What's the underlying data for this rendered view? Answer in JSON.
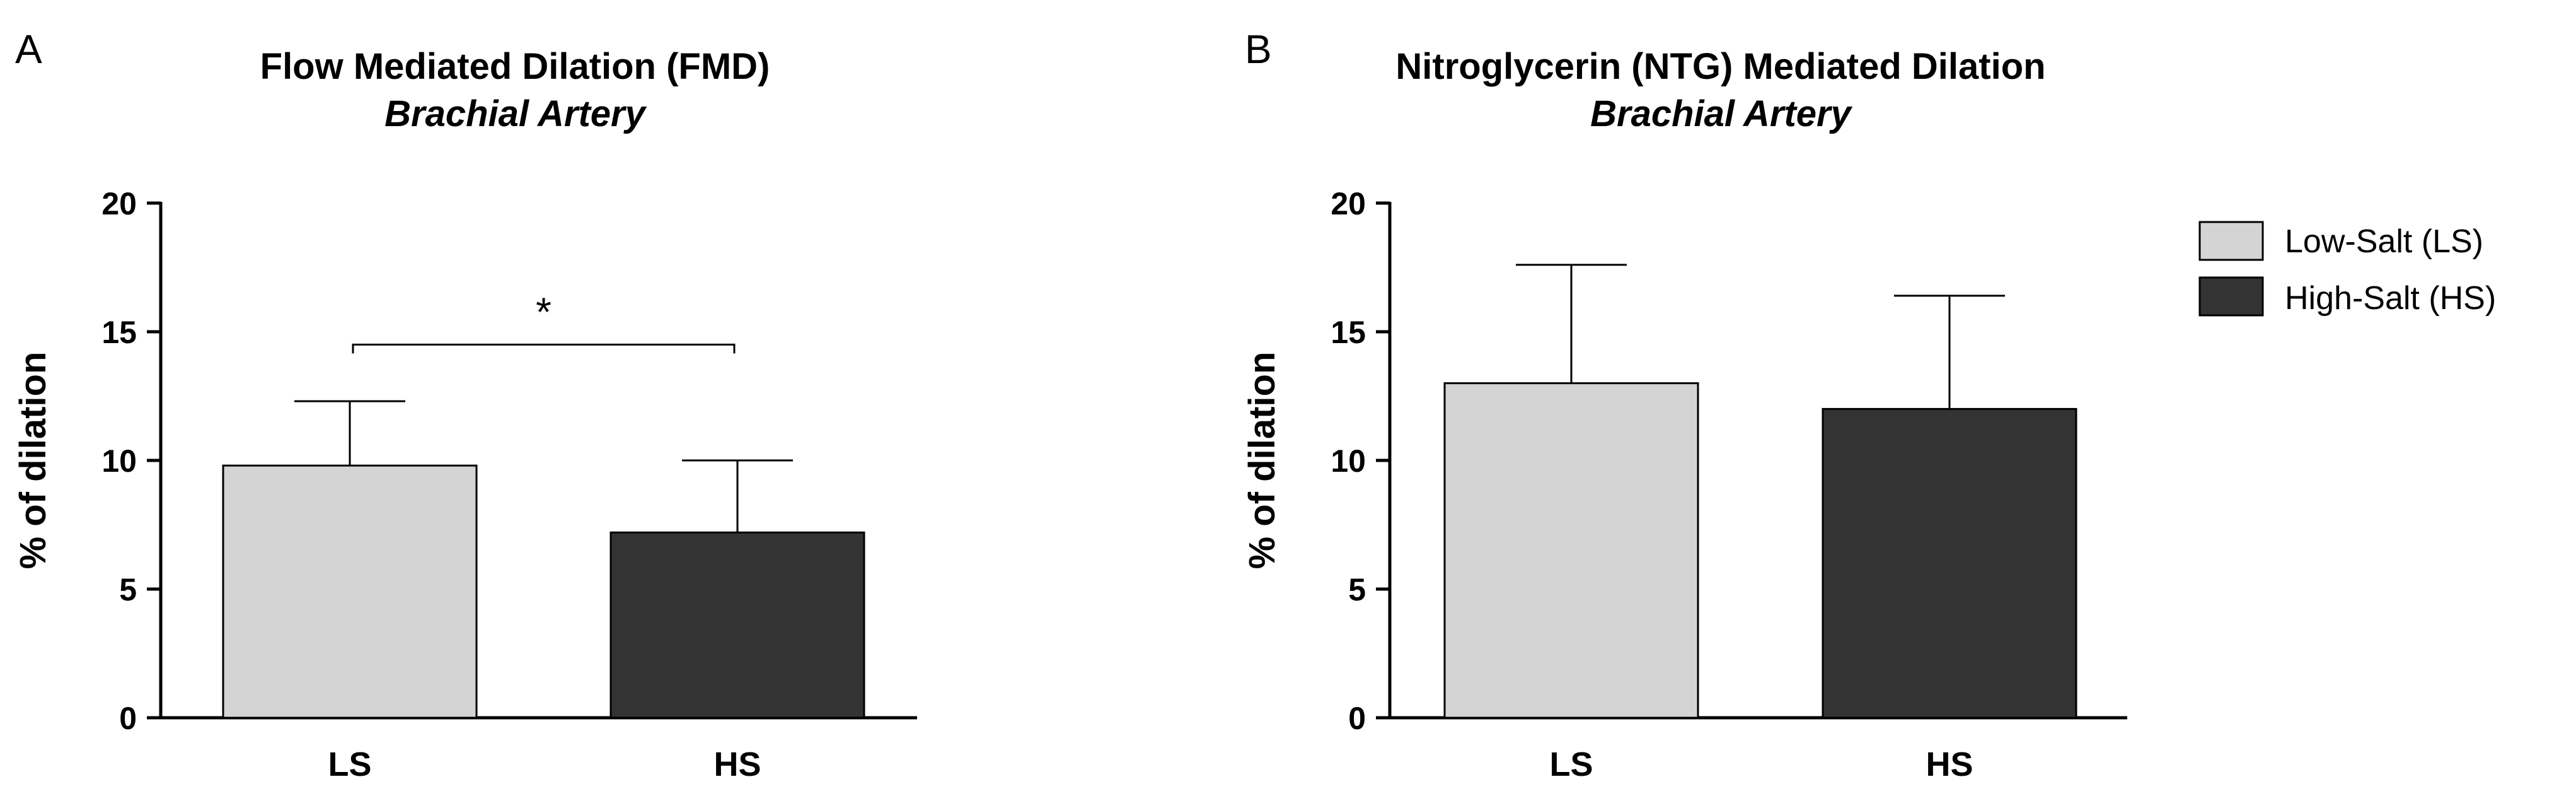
{
  "colors": {
    "low_salt": "#d4d4d4",
    "high_salt": "#333333"
  },
  "legend": {
    "items": [
      {
        "label": "Low-Salt (LS)",
        "color": "#d4d4d4"
      },
      {
        "label": "High-Salt (HS)",
        "color": "#333333"
      }
    ]
  },
  "chart_data": [
    {
      "panel": "A",
      "type": "bar",
      "title": "Flow Mediated Dilation (FMD)",
      "subtitle": "Brachial Artery",
      "ylabel": "% of dilation",
      "xlabel": "",
      "categories": [
        "LS",
        "HS"
      ],
      "values": [
        9.8,
        7.2
      ],
      "error_upper": [
        12.3,
        10.0
      ],
      "ylim": [
        0,
        20
      ],
      "yticks": [
        0,
        5,
        10,
        15,
        20
      ],
      "annotations": [
        {
          "text": "*",
          "between": [
            "LS",
            "HS"
          ],
          "at_value": 14.5
        }
      ]
    },
    {
      "panel": "B",
      "type": "bar",
      "title": "Nitroglycerin (NTG) Mediated Dilation",
      "subtitle": "Brachial Artery",
      "ylabel": "% of dilation",
      "xlabel": "",
      "categories": [
        "LS",
        "HS"
      ],
      "values": [
        13.0,
        12.0
      ],
      "error_upper": [
        17.6,
        16.4
      ],
      "ylim": [
        0,
        20
      ],
      "yticks": [
        0,
        5,
        10,
        15,
        20
      ],
      "annotations": []
    }
  ]
}
